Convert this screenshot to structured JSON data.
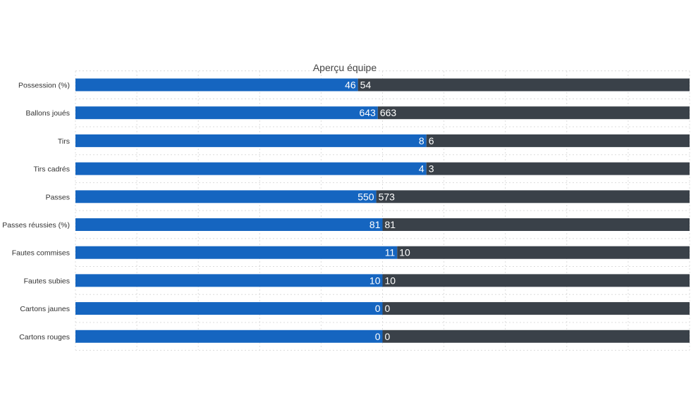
{
  "chart_data": {
    "type": "bar",
    "orientation": "horizontal",
    "stacking": "percent",
    "title": "Aperçu équipe",
    "xlabel": "",
    "ylabel": "",
    "grid": true,
    "legend": "none",
    "categories": [
      "Possession (%)",
      "Ballons joués",
      "Tirs",
      "Tirs cadrés",
      "Passes",
      "Passes réussies (%)",
      "Fautes commises",
      "Fautes subies",
      "Cartons jaunes",
      "Cartons rouges"
    ],
    "series": [
      {
        "values": [
          46,
          643,
          8,
          4,
          550,
          81,
          11,
          10,
          0,
          0
        ],
        "labels": [
          "46",
          "643",
          "8",
          "4",
          "550",
          "81",
          "11",
          "10",
          "0",
          "0"
        ],
        "color": "#1565c0"
      },
      {
        "values": [
          54,
          663,
          6,
          3,
          573,
          81,
          10,
          10,
          0,
          0
        ],
        "labels": [
          "54",
          "663",
          "6",
          "3",
          "573",
          "81",
          "10",
          "10",
          "0",
          "0"
        ],
        "color": "#3a4149"
      }
    ]
  },
  "colors": {
    "home": "#1565c0",
    "away": "#3a4149",
    "grid": "#dcdcdc",
    "label_text": "#ffffff",
    "category_text": "#333333",
    "title_text": "#444444"
  }
}
